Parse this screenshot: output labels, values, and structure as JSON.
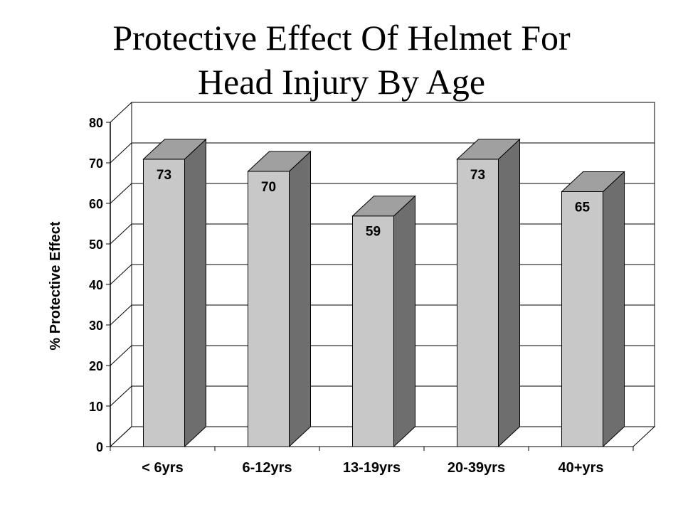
{
  "chart_data": {
    "type": "bar",
    "title_lines": [
      "Protective Effect Of Helmet For",
      "Head Injury By Age"
    ],
    "ylabel": "% Protective Effect",
    "xlabel": "",
    "categories": [
      "< 6yrs",
      "6-12yrs",
      "13-19yrs",
      "20-39yrs",
      "40+yrs"
    ],
    "values": [
      73,
      70,
      59,
      73,
      65
    ],
    "data_labels": [
      "73",
      "70",
      "59",
      "73",
      "65"
    ],
    "ylim": [
      0,
      80
    ],
    "yticks": [
      0,
      10,
      20,
      30,
      40,
      50,
      60,
      70,
      80
    ],
    "grid": true,
    "legend": "none",
    "style": "3d",
    "colors": {
      "bar_front": "#c8c8c8",
      "bar_side": "#6e6e6e",
      "bar_top": "#a0a0a0",
      "grid": "#000000"
    }
  }
}
